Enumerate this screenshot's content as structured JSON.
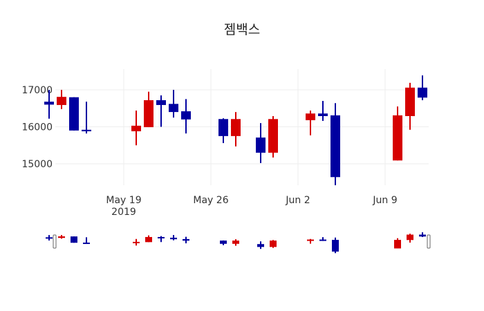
{
  "title": "젬백스",
  "colors": {
    "increasing": "#d60000",
    "decreasing": "#0000a0",
    "grid": "#eeeeee"
  },
  "chart_data": {
    "type": "candlestick",
    "title": "젬백스",
    "xlabel": "",
    "ylabel": "",
    "ylim": [
      14250,
      17600
    ],
    "y_ticks": [
      15000,
      16000,
      17000
    ],
    "x_ticks": [
      {
        "label": "May 19",
        "sublabel": "2019",
        "date": "2019-05-19"
      },
      {
        "label": "May 26",
        "sublabel": "",
        "date": "2019-05-26"
      },
      {
        "label": "Jun 2",
        "sublabel": "",
        "date": "2019-06-02"
      },
      {
        "label": "Jun 9",
        "sublabel": "",
        "date": "2019-06-09"
      }
    ],
    "grid": true,
    "rangeslider": true,
    "candles": [
      {
        "date": "2019-05-13",
        "open": 16680,
        "high": 17000,
        "low": 16220,
        "close": 16600
      },
      {
        "date": "2019-05-14",
        "open": 16590,
        "high": 17000,
        "low": 16480,
        "close": 16810
      },
      {
        "date": "2019-05-15",
        "open": 16800,
        "high": 16800,
        "low": 15900,
        "close": 15900
      },
      {
        "date": "2019-05-16",
        "open": 15920,
        "high": 16680,
        "low": 15820,
        "close": 15880
      },
      {
        "date": "2019-05-20",
        "open": 15880,
        "high": 16440,
        "low": 15500,
        "close": 16030
      },
      {
        "date": "2019-05-21",
        "open": 15990,
        "high": 16950,
        "low": 15990,
        "close": 16720
      },
      {
        "date": "2019-05-22",
        "open": 16720,
        "high": 16850,
        "low": 16000,
        "close": 16590
      },
      {
        "date": "2019-05-23",
        "open": 16620,
        "high": 17000,
        "low": 16250,
        "close": 16400
      },
      {
        "date": "2019-05-24",
        "open": 16420,
        "high": 16750,
        "low": 15820,
        "close": 16200
      },
      {
        "date": "2019-05-27",
        "open": 16210,
        "high": 16230,
        "low": 15560,
        "close": 15750
      },
      {
        "date": "2019-05-28",
        "open": 15750,
        "high": 16400,
        "low": 15470,
        "close": 16210
      },
      {
        "date": "2019-05-30",
        "open": 15710,
        "high": 16100,
        "low": 15020,
        "close": 15300
      },
      {
        "date": "2019-05-31",
        "open": 15300,
        "high": 16290,
        "low": 15170,
        "close": 16210
      },
      {
        "date": "2019-06-03",
        "open": 16180,
        "high": 16440,
        "low": 15770,
        "close": 16360
      },
      {
        "date": "2019-06-04",
        "open": 16360,
        "high": 16700,
        "low": 16160,
        "close": 16290
      },
      {
        "date": "2019-06-05",
        "open": 16310,
        "high": 16640,
        "low": 14420,
        "close": 14640
      },
      {
        "date": "2019-06-10",
        "open": 15090,
        "high": 16550,
        "low": 15090,
        "close": 16310
      },
      {
        "date": "2019-06-11",
        "open": 16290,
        "high": 17190,
        "low": 15920,
        "close": 17060
      },
      {
        "date": "2019-06-12",
        "open": 17060,
        "high": 17390,
        "low": 16720,
        "close": 16790
      }
    ]
  }
}
